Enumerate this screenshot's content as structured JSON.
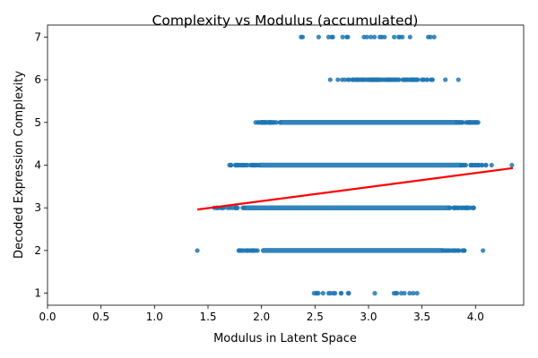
{
  "chart_data": {
    "type": "scatter",
    "title": "Complexity vs Modulus (accumulated)",
    "xlabel": "Modulus in Latent Space",
    "ylabel": "Decoded Expression Complexity",
    "xlim": [
      0.0,
      4.45
    ],
    "ylim": [
      0.72,
      7.28
    ],
    "xticks": [
      "0.0",
      "0.5",
      "1.0",
      "1.5",
      "2.0",
      "2.5",
      "3.0",
      "3.5",
      "4.0"
    ],
    "yticks": [
      "1",
      "2",
      "3",
      "4",
      "5",
      "6",
      "7"
    ],
    "point_color": "#1f77b4",
    "fit_color": "#ff0000",
    "grid": false,
    "levels": [
      {
        "y": 1,
        "x_min": 2.48,
        "x_max": 3.47,
        "dense": false
      },
      {
        "y": 2,
        "x_min": 1.76,
        "x_max": 3.9,
        "dense": true
      },
      {
        "y": 3,
        "x_min": 1.55,
        "x_max": 4.0,
        "dense": true
      },
      {
        "y": 4,
        "x_min": 1.7,
        "x_max": 4.1,
        "dense": true
      },
      {
        "y": 5,
        "x_min": 1.93,
        "x_max": 4.03,
        "dense": true
      },
      {
        "y": 6,
        "x_min": 2.47,
        "x_max": 3.85,
        "dense": false
      },
      {
        "y": 7,
        "x_min": 2.37,
        "x_max": 3.65,
        "dense": false
      }
    ],
    "outliers": [
      {
        "x": 1.4,
        "y": 2
      },
      {
        "x": 4.07,
        "y": 2
      },
      {
        "x": 4.34,
        "y": 4
      },
      {
        "x": 4.15,
        "y": 4
      },
      {
        "x": 3.95,
        "y": 5
      },
      {
        "x": 3.98,
        "y": 3
      },
      {
        "x": 3.84,
        "y": 6
      },
      {
        "x": 2.37,
        "y": 7
      },
      {
        "x": 3.58,
        "y": 7
      }
    ],
    "regression": {
      "x": [
        1.4,
        4.35
      ],
      "y": [
        2.96,
        3.93
      ]
    }
  }
}
